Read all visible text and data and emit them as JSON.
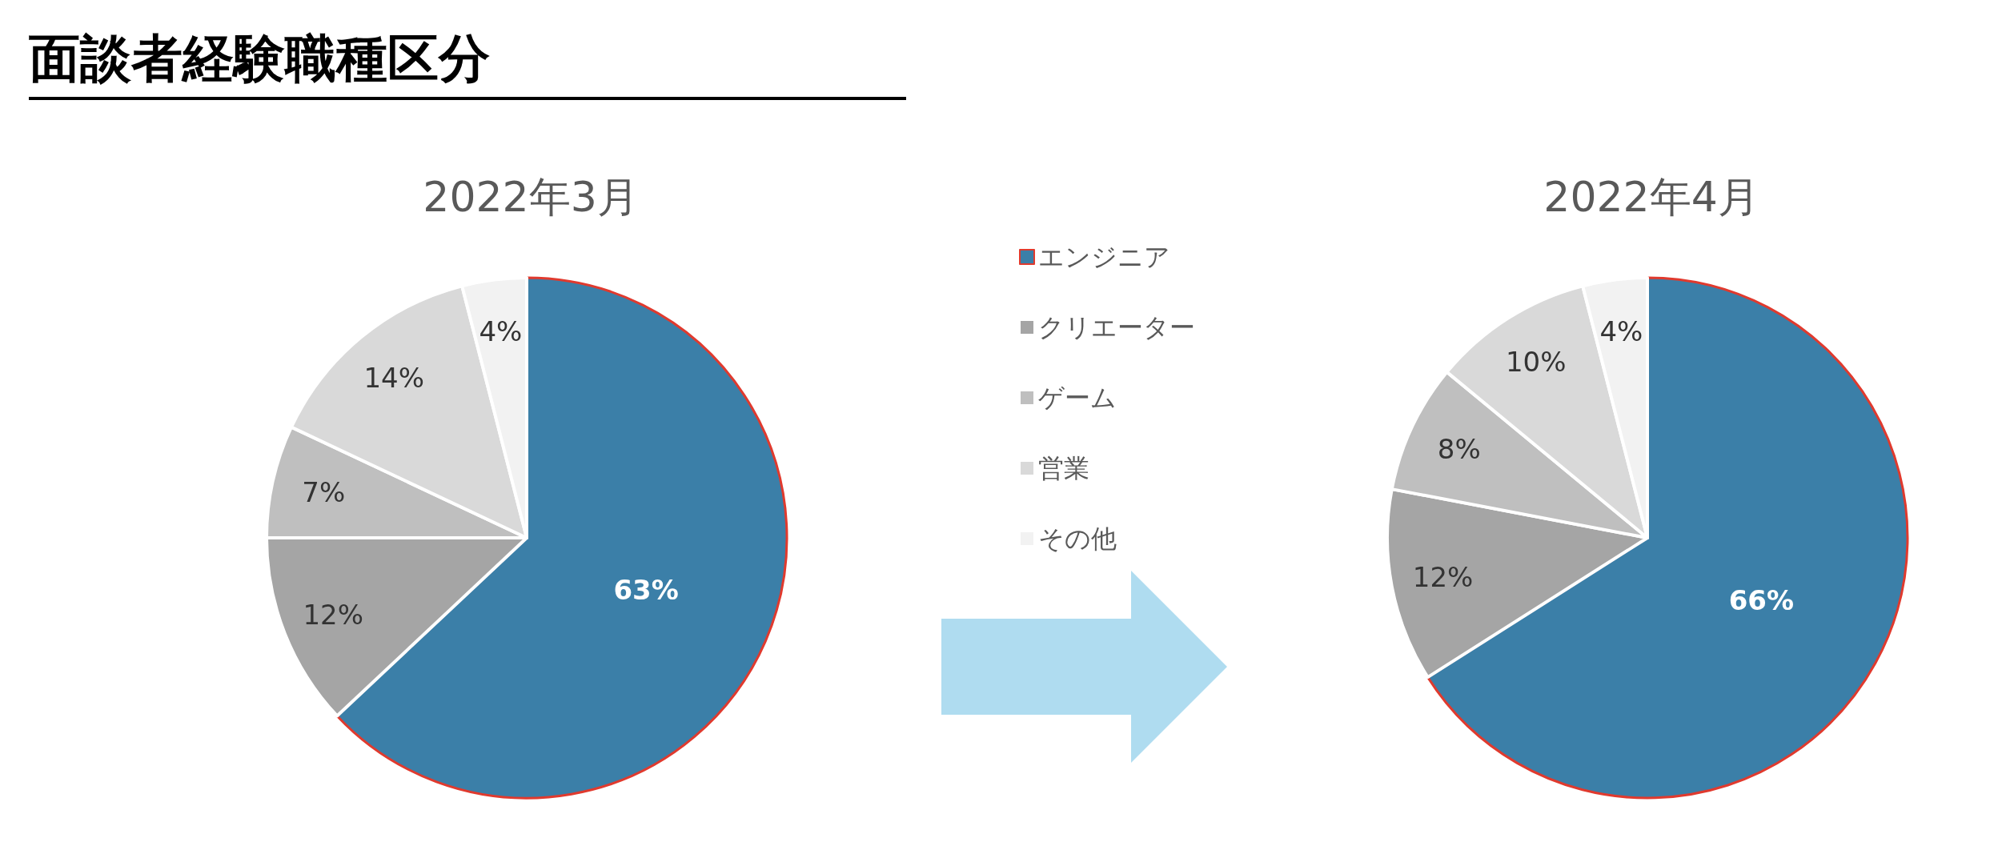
{
  "chart_data": {
    "type": "pie",
    "title": "面談者経験職種区分",
    "categories": [
      "エンジニア",
      "クリエーター",
      "ゲーム",
      "営業",
      "その他"
    ],
    "legend": "right",
    "series": [
      {
        "name": "2022年3月",
        "values": [
          63,
          12,
          7,
          14,
          4
        ],
        "value_labels": [
          "63%",
          "12%",
          "7%",
          "14%",
          "4%"
        ],
        "colors": [
          "#3b7fa8",
          "#a5a5a5",
          "#bfbfbf",
          "#d9d9d9",
          "#f2f2f2"
        ]
      },
      {
        "name": "2022年4月",
        "values": [
          66,
          12,
          8,
          10,
          4
        ],
        "value_labels": [
          "66%",
          "12%",
          "8%",
          "10%",
          "4%"
        ],
        "colors": [
          "#3b7fa8",
          "#a5a5a5",
          "#bfbfbf",
          "#d9d9d9",
          "#f2f2f2"
        ]
      }
    ]
  }
}
